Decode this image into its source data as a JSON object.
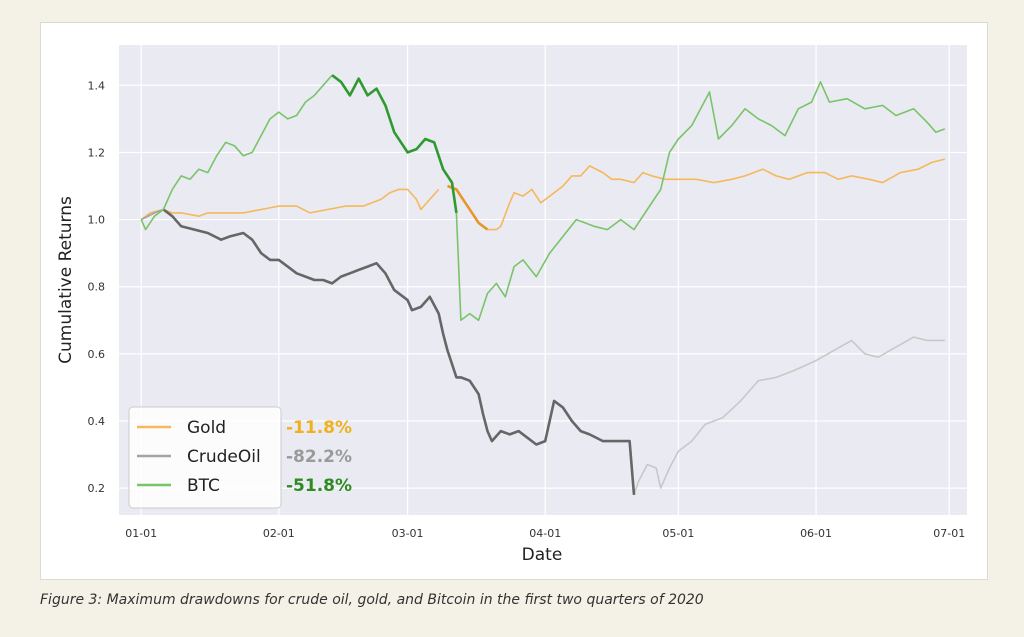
{
  "caption": "Figure 3: Maximum drawdowns for crude oil, gold, and Bitcoin in the first two quarters of 2020",
  "chart_data": {
    "type": "line",
    "title": "",
    "xlabel": "Date",
    "ylabel": "Cumulative Returns",
    "grid": true,
    "legend_position": "bottom-left",
    "xlim": [
      "2019-12-27",
      "2020-07-05"
    ],
    "ylim": [
      0.12,
      1.52
    ],
    "x_ticks": [
      {
        "date": "2020-01-01",
        "label": "01-01"
      },
      {
        "date": "2020-02-01",
        "label": "02-01"
      },
      {
        "date": "2020-03-01",
        "label": "03-01"
      },
      {
        "date": "2020-04-01",
        "label": "04-01"
      },
      {
        "date": "2020-05-01",
        "label": "05-01"
      },
      {
        "date": "2020-06-01",
        "label": "06-01"
      },
      {
        "date": "2020-07-01",
        "label": "07-01"
      }
    ],
    "y_ticks": [
      {
        "value": 0.2,
        "label": "0.2"
      },
      {
        "value": 0.4,
        "label": "0.4"
      },
      {
        "value": 0.6,
        "label": "0.6"
      },
      {
        "value": 0.8,
        "label": "0.8"
      },
      {
        "value": 1.0,
        "label": "1.0"
      },
      {
        "value": 1.2,
        "label": "1.2"
      },
      {
        "value": 1.4,
        "label": "1.4"
      }
    ],
    "colors": {
      "plot_bg": "#eaeaf2",
      "gold": "#f5b85a",
      "gold_dark": "#e8962a",
      "gold_pct": "#f0b21c",
      "crude": "#a3a3a3",
      "crude_dark": "#666666",
      "crude_light": "#c8c8c8",
      "crude_pct": "#9a9a9a",
      "btc": "#79c46a",
      "btc_dark": "#2f9a2f",
      "btc_pct": "#2f8a22"
    },
    "series": [
      {
        "name": "Gold",
        "legend_value": "-11.8%",
        "drawdown_window": [
          "2020-03-09",
          "2020-03-19"
        ],
        "points": [
          [
            "2020-01-01",
            1.0
          ],
          [
            "2020-01-03",
            1.02
          ],
          [
            "2020-01-06",
            1.03
          ],
          [
            "2020-01-08",
            1.02
          ],
          [
            "2020-01-10",
            1.02
          ],
          [
            "2020-01-14",
            1.01
          ],
          [
            "2020-01-16",
            1.02
          ],
          [
            "2020-01-20",
            1.02
          ],
          [
            "2020-01-24",
            1.02
          ],
          [
            "2020-01-28",
            1.03
          ],
          [
            "2020-02-01",
            1.04
          ],
          [
            "2020-02-05",
            1.04
          ],
          [
            "2020-02-08",
            1.02
          ],
          [
            "2020-02-12",
            1.03
          ],
          [
            "2020-02-16",
            1.04
          ],
          [
            "2020-02-20",
            1.04
          ],
          [
            "2020-02-24",
            1.06
          ],
          [
            "2020-02-26",
            1.08
          ],
          [
            "2020-02-28",
            1.09
          ],
          [
            "2020-03-01",
            1.09
          ],
          [
            "2020-03-03",
            1.06
          ],
          [
            "2020-03-04",
            1.03
          ],
          [
            "2020-03-06",
            1.06
          ],
          [
            "2020-03-08",
            1.09
          ],
          [
            "2020-03-10",
            1.1
          ],
          [
            "2020-03-12",
            1.09
          ],
          [
            "2020-03-14",
            1.05
          ],
          [
            "2020-03-16",
            1.01
          ],
          [
            "2020-03-17",
            0.99
          ],
          [
            "2020-03-19",
            0.97
          ],
          [
            "2020-03-21",
            0.97
          ],
          [
            "2020-03-22",
            0.98
          ],
          [
            "2020-03-24",
            1.05
          ],
          [
            "2020-03-25",
            1.08
          ],
          [
            "2020-03-27",
            1.07
          ],
          [
            "2020-03-29",
            1.09
          ],
          [
            "2020-03-31",
            1.05
          ],
          [
            "2020-04-02",
            1.07
          ],
          [
            "2020-04-05",
            1.1
          ],
          [
            "2020-04-07",
            1.13
          ],
          [
            "2020-04-09",
            1.13
          ],
          [
            "2020-04-11",
            1.16
          ],
          [
            "2020-04-14",
            1.14
          ],
          [
            "2020-04-16",
            1.12
          ],
          [
            "2020-04-18",
            1.12
          ],
          [
            "2020-04-21",
            1.11
          ],
          [
            "2020-04-23",
            1.14
          ],
          [
            "2020-04-25",
            1.13
          ],
          [
            "2020-04-28",
            1.12
          ],
          [
            "2020-05-01",
            1.12
          ],
          [
            "2020-05-05",
            1.12
          ],
          [
            "2020-05-09",
            1.11
          ],
          [
            "2020-05-13",
            1.12
          ],
          [
            "2020-05-16",
            1.13
          ],
          [
            "2020-05-20",
            1.15
          ],
          [
            "2020-05-23",
            1.13
          ],
          [
            "2020-05-26",
            1.12
          ],
          [
            "2020-05-30",
            1.14
          ],
          [
            "2020-06-03",
            1.14
          ],
          [
            "2020-06-06",
            1.12
          ],
          [
            "2020-06-09",
            1.13
          ],
          [
            "2020-06-13",
            1.12
          ],
          [
            "2020-06-16",
            1.11
          ],
          [
            "2020-06-20",
            1.14
          ],
          [
            "2020-06-24",
            1.15
          ],
          [
            "2020-06-27",
            1.17
          ],
          [
            "2020-06-30",
            1.18
          ]
        ]
      },
      {
        "name": "CrudeOil",
        "legend_value": "-82.2%",
        "drawdown_window": [
          "2020-01-06",
          "2020-04-21"
        ],
        "points": [
          [
            "2020-01-01",
            1.0
          ],
          [
            "2020-01-04",
            1.02
          ],
          [
            "2020-01-06",
            1.03
          ],
          [
            "2020-01-08",
            1.01
          ],
          [
            "2020-01-10",
            0.98
          ],
          [
            "2020-01-13",
            0.97
          ],
          [
            "2020-01-16",
            0.96
          ],
          [
            "2020-01-19",
            0.94
          ],
          [
            "2020-01-21",
            0.95
          ],
          [
            "2020-01-24",
            0.96
          ],
          [
            "2020-01-26",
            0.94
          ],
          [
            "2020-01-28",
            0.9
          ],
          [
            "2020-01-30",
            0.88
          ],
          [
            "2020-02-01",
            0.88
          ],
          [
            "2020-02-03",
            0.86
          ],
          [
            "2020-02-05",
            0.84
          ],
          [
            "2020-02-07",
            0.83
          ],
          [
            "2020-02-09",
            0.82
          ],
          [
            "2020-02-11",
            0.82
          ],
          [
            "2020-02-13",
            0.81
          ],
          [
            "2020-02-15",
            0.83
          ],
          [
            "2020-02-17",
            0.84
          ],
          [
            "2020-02-19",
            0.85
          ],
          [
            "2020-02-21",
            0.86
          ],
          [
            "2020-02-23",
            0.87
          ],
          [
            "2020-02-25",
            0.84
          ],
          [
            "2020-02-27",
            0.79
          ],
          [
            "2020-03-01",
            0.76
          ],
          [
            "2020-03-02",
            0.73
          ],
          [
            "2020-03-04",
            0.74
          ],
          [
            "2020-03-06",
            0.77
          ],
          [
            "2020-03-08",
            0.72
          ],
          [
            "2020-03-09",
            0.66
          ],
          [
            "2020-03-10",
            0.61
          ],
          [
            "2020-03-11",
            0.57
          ],
          [
            "2020-03-12",
            0.53
          ],
          [
            "2020-03-13",
            0.53
          ],
          [
            "2020-03-15",
            0.52
          ],
          [
            "2020-03-17",
            0.48
          ],
          [
            "2020-03-18",
            0.42
          ],
          [
            "2020-03-19",
            0.37
          ],
          [
            "2020-03-20",
            0.34
          ],
          [
            "2020-03-22",
            0.37
          ],
          [
            "2020-03-24",
            0.36
          ],
          [
            "2020-03-26",
            0.37
          ],
          [
            "2020-03-28",
            0.35
          ],
          [
            "2020-03-30",
            0.33
          ],
          [
            "2020-04-01",
            0.34
          ],
          [
            "2020-04-03",
            0.46
          ],
          [
            "2020-04-05",
            0.44
          ],
          [
            "2020-04-07",
            0.4
          ],
          [
            "2020-04-09",
            0.37
          ],
          [
            "2020-04-11",
            0.36
          ],
          [
            "2020-04-14",
            0.34
          ],
          [
            "2020-04-17",
            0.34
          ],
          [
            "2020-04-20",
            0.34
          ],
          [
            "2020-04-21",
            0.18
          ],
          [
            "2020-04-22",
            0.22
          ],
          [
            "2020-04-24",
            0.27
          ],
          [
            "2020-04-26",
            0.26
          ],
          [
            "2020-04-27",
            0.2
          ],
          [
            "2020-04-29",
            0.26
          ],
          [
            "2020-05-01",
            0.31
          ],
          [
            "2020-05-04",
            0.34
          ],
          [
            "2020-05-07",
            0.39
          ],
          [
            "2020-05-11",
            0.41
          ],
          [
            "2020-05-15",
            0.46
          ],
          [
            "2020-05-19",
            0.52
          ],
          [
            "2020-05-23",
            0.53
          ],
          [
            "2020-05-27",
            0.55
          ],
          [
            "2020-06-01",
            0.58
          ],
          [
            "2020-06-05",
            0.61
          ],
          [
            "2020-06-09",
            0.64
          ],
          [
            "2020-06-12",
            0.6
          ],
          [
            "2020-06-15",
            0.59
          ],
          [
            "2020-06-19",
            0.62
          ],
          [
            "2020-06-23",
            0.65
          ],
          [
            "2020-06-26",
            0.64
          ],
          [
            "2020-06-30",
            0.64
          ]
        ]
      },
      {
        "name": "BTC",
        "legend_value": "-51.8%",
        "drawdown_window": [
          "2020-02-13",
          "2020-03-12"
        ],
        "points": [
          [
            "2020-01-01",
            1.0
          ],
          [
            "2020-01-02",
            0.97
          ],
          [
            "2020-01-04",
            1.01
          ],
          [
            "2020-01-06",
            1.03
          ],
          [
            "2020-01-08",
            1.09
          ],
          [
            "2020-01-10",
            1.13
          ],
          [
            "2020-01-12",
            1.12
          ],
          [
            "2020-01-14",
            1.15
          ],
          [
            "2020-01-16",
            1.14
          ],
          [
            "2020-01-18",
            1.19
          ],
          [
            "2020-01-20",
            1.23
          ],
          [
            "2020-01-22",
            1.22
          ],
          [
            "2020-01-24",
            1.19
          ],
          [
            "2020-01-26",
            1.2
          ],
          [
            "2020-01-28",
            1.25
          ],
          [
            "2020-01-30",
            1.3
          ],
          [
            "2020-02-01",
            1.32
          ],
          [
            "2020-02-03",
            1.3
          ],
          [
            "2020-02-05",
            1.31
          ],
          [
            "2020-02-07",
            1.35
          ],
          [
            "2020-02-09",
            1.37
          ],
          [
            "2020-02-11",
            1.4
          ],
          [
            "2020-02-13",
            1.43
          ],
          [
            "2020-02-15",
            1.41
          ],
          [
            "2020-02-17",
            1.37
          ],
          [
            "2020-02-19",
            1.42
          ],
          [
            "2020-02-21",
            1.37
          ],
          [
            "2020-02-23",
            1.39
          ],
          [
            "2020-02-25",
            1.34
          ],
          [
            "2020-02-27",
            1.26
          ],
          [
            "2020-03-01",
            1.2
          ],
          [
            "2020-03-03",
            1.21
          ],
          [
            "2020-03-05",
            1.24
          ],
          [
            "2020-03-07",
            1.23
          ],
          [
            "2020-03-09",
            1.15
          ],
          [
            "2020-03-11",
            1.11
          ],
          [
            "2020-03-12",
            1.02
          ],
          [
            "2020-03-13",
            0.7
          ],
          [
            "2020-03-15",
            0.72
          ],
          [
            "2020-03-17",
            0.7
          ],
          [
            "2020-03-19",
            0.78
          ],
          [
            "2020-03-21",
            0.81
          ],
          [
            "2020-03-23",
            0.77
          ],
          [
            "2020-03-25",
            0.86
          ],
          [
            "2020-03-27",
            0.88
          ],
          [
            "2020-03-30",
            0.83
          ],
          [
            "2020-04-02",
            0.9
          ],
          [
            "2020-04-05",
            0.95
          ],
          [
            "2020-04-08",
            1.0
          ],
          [
            "2020-04-12",
            0.98
          ],
          [
            "2020-04-15",
            0.97
          ],
          [
            "2020-04-18",
            1.0
          ],
          [
            "2020-04-21",
            0.97
          ],
          [
            "2020-04-24",
            1.03
          ],
          [
            "2020-04-27",
            1.09
          ],
          [
            "2020-04-29",
            1.2
          ],
          [
            "2020-05-01",
            1.24
          ],
          [
            "2020-05-04",
            1.28
          ],
          [
            "2020-05-08",
            1.38
          ],
          [
            "2020-05-10",
            1.24
          ],
          [
            "2020-05-13",
            1.28
          ],
          [
            "2020-05-16",
            1.33
          ],
          [
            "2020-05-19",
            1.3
          ],
          [
            "2020-05-22",
            1.28
          ],
          [
            "2020-05-25",
            1.25
          ],
          [
            "2020-05-28",
            1.33
          ],
          [
            "2020-05-31",
            1.35
          ],
          [
            "2020-06-02",
            1.41
          ],
          [
            "2020-06-04",
            1.35
          ],
          [
            "2020-06-08",
            1.36
          ],
          [
            "2020-06-12",
            1.33
          ],
          [
            "2020-06-16",
            1.34
          ],
          [
            "2020-06-19",
            1.31
          ],
          [
            "2020-06-23",
            1.33
          ],
          [
            "2020-06-26",
            1.29
          ],
          [
            "2020-06-28",
            1.26
          ],
          [
            "2020-06-30",
            1.27
          ]
        ]
      }
    ]
  }
}
